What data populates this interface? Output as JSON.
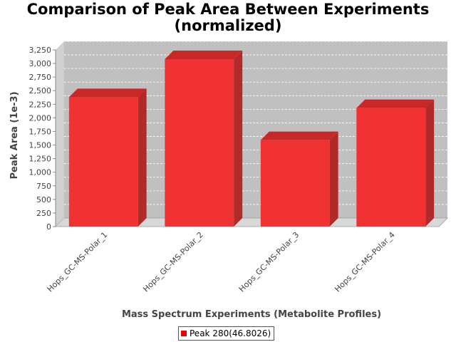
{
  "chart_data": {
    "type": "bar",
    "title_lines": [
      "Comparison of Peak Area Between Experiments",
      "(normalized)"
    ],
    "xlabel": "Mass Spectrum Experiments (Metabolite Profiles)",
    "ylabel": "Peak Area (1e-3)",
    "categories": [
      "Hops_GC-MS-Polar_1",
      "Hops_GC-MS-Polar_2",
      "Hops_GC-MS-Polar_3",
      "Hops_GC-MS-Polar_4"
    ],
    "series": [
      {
        "name": "Peak 280(46.8026)",
        "values": [
          2380,
          3080,
          1590,
          2180
        ]
      }
    ],
    "ylim": [
      0,
      3250
    ],
    "yticks": [
      0,
      250,
      500,
      750,
      1000,
      1250,
      1500,
      1750,
      2000,
      2250,
      2500,
      2750,
      3000,
      3250
    ],
    "ytick_labels": [
      "0",
      "250",
      "500",
      "750",
      "1,000",
      "1,250",
      "1,500",
      "1,750",
      "2,000",
      "2,250",
      "2,500",
      "2,750",
      "3,000",
      "3,250"
    ],
    "grid": true,
    "legend_position": "bottom",
    "colors": {
      "bar": "#f03232",
      "bar_top": "#c82828",
      "bar_side": "#b02a2a",
      "plot_bg": "#c0c0c0",
      "plot_floor": "#d8d8d8"
    }
  }
}
